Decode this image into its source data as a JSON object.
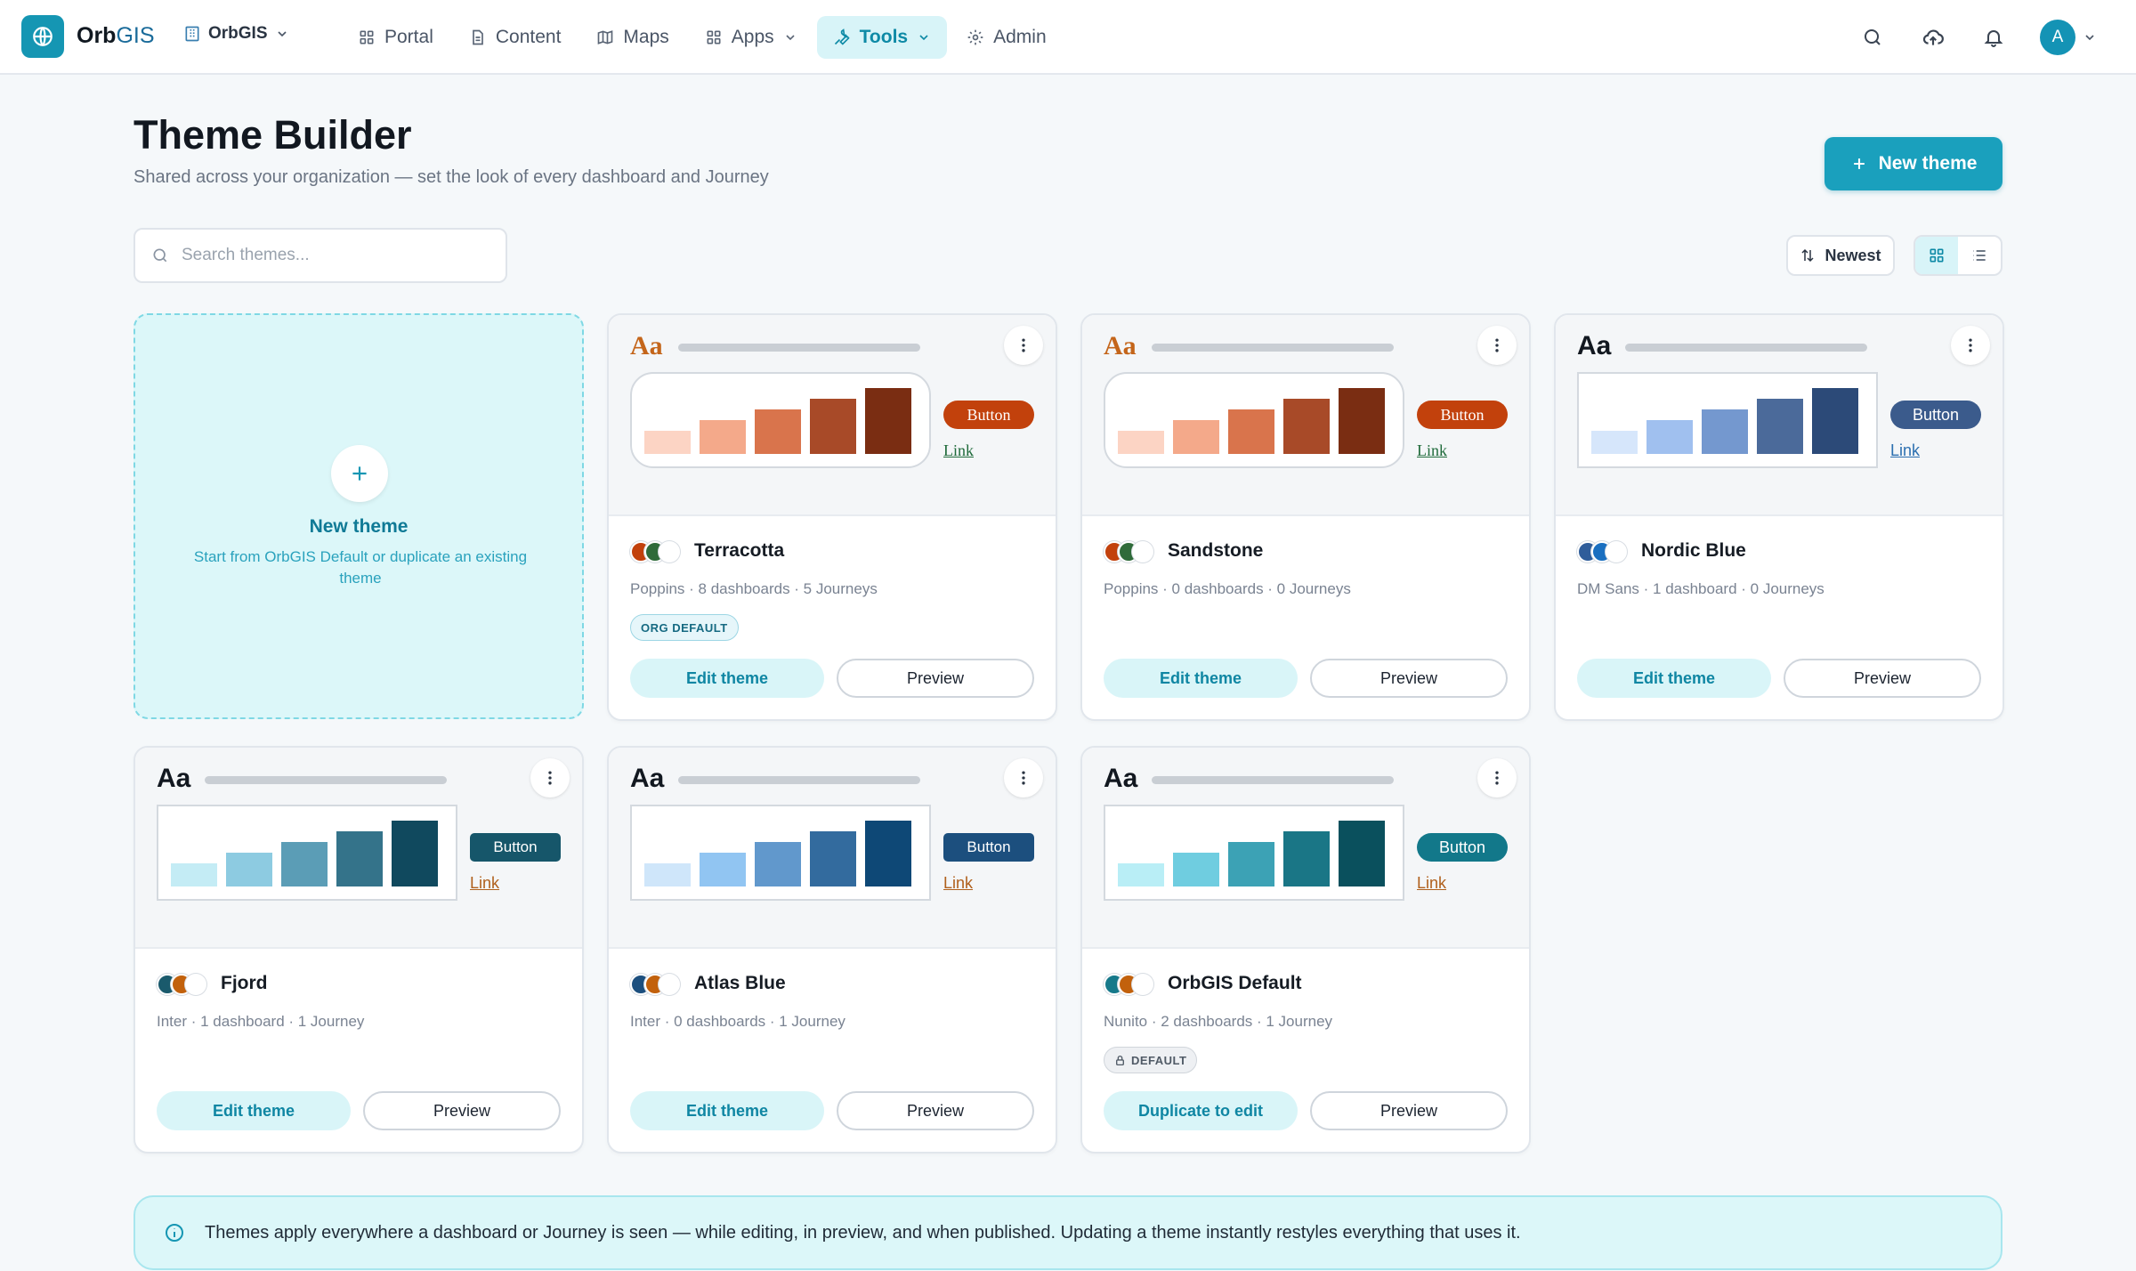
{
  "app": {
    "brand_main": "Orb",
    "brand_accent": "GIS",
    "org_name": "OrbGIS",
    "avatar_initial": "A"
  },
  "nav": [
    {
      "label": "Portal",
      "icon": "grid-icon"
    },
    {
      "label": "Content",
      "icon": "document-icon"
    },
    {
      "label": "Maps",
      "icon": "map-icon"
    },
    {
      "label": "Apps",
      "icon": "apps-icon"
    },
    {
      "label": "Tools",
      "icon": "wrench-icon",
      "active": true
    },
    {
      "label": "Admin",
      "icon": "gear-icon"
    }
  ],
  "header": {
    "title": "Theme Builder",
    "subtitle": "Shared across your organization — set the look of every dashboard and Journey",
    "new_button": "New theme"
  },
  "toolbar": {
    "search_placeholder": "Search themes...",
    "sort_label": "Newest"
  },
  "new_card": {
    "title": "New theme",
    "description": "Start from OrbGIS Default or duplicate an existing theme"
  },
  "themes": [
    {
      "name": "Terracotta",
      "meta": "Poppins · 8 dashboards · 5 Journeys",
      "tag": "ORG DEFAULT",
      "aa": "Aa",
      "button_label": "Button",
      "link_label": "Link",
      "primary_action": "Edit theme",
      "secondary_action": "Preview",
      "aa_color": "#c4651a",
      "button_color": "#c2410c",
      "link_color": "#1e6a3a",
      "swatches": [
        "#c2410c",
        "#2f6b3a",
        "#ffffff"
      ],
      "bars": [
        "#fcd4c4",
        "#f4a98a",
        "#d9744c",
        "#a84a28",
        "#7a2d12"
      ]
    },
    {
      "name": "Sandstone",
      "meta": "Poppins · 0 dashboards · 0 Journeys",
      "aa": "Aa",
      "button_label": "Button",
      "link_label": "Link",
      "primary_action": "Edit theme",
      "secondary_action": "Preview",
      "aa_color": "#c4651a",
      "button_color": "#c2410c",
      "link_color": "#1e6a3a",
      "swatches": [
        "#c2410c",
        "#2f6b3a",
        "#ffffff"
      ],
      "bars": [
        "#fcd4c4",
        "#f4a98a",
        "#d9744c",
        "#a84a28",
        "#7a2d12"
      ]
    },
    {
      "name": "Nordic Blue",
      "meta": "DM Sans · 1 dashboard · 0 Journeys",
      "aa": "Aa",
      "button_label": "Button",
      "link_label": "Link",
      "primary_action": "Edit theme",
      "secondary_action": "Preview",
      "aa_color": "#121820",
      "button_color": "#3b5b8c",
      "link_color": "#2c6fb0",
      "swatches": [
        "#2f5d9a",
        "#1a6fc0",
        "#ffffff"
      ],
      "bars": [
        "#d6e6fb",
        "#a0c0ef",
        "#7498cf",
        "#4b6a9a",
        "#2c4a78"
      ]
    },
    {
      "name": "Fjord",
      "meta": "Inter · 1 dashboard · 1 Journey",
      "aa": "Aa",
      "button_label": "Button",
      "link_label": "Link",
      "primary_action": "Edit theme",
      "secondary_action": "Preview",
      "aa_color": "#121820",
      "button_color": "#16566a",
      "link_color": "#b0601c",
      "swatches": [
        "#1a5a6c",
        "#c2610c",
        "#ffffff"
      ],
      "bars": [
        "#c4ecf5",
        "#8dcbe1",
        "#5b9db6",
        "#34738a",
        "#10495e"
      ]
    },
    {
      "name": "Atlas Blue",
      "meta": "Inter · 0 dashboards · 1 Journey",
      "aa": "Aa",
      "button_label": "Button",
      "link_label": "Link",
      "primary_action": "Edit theme",
      "secondary_action": "Preview",
      "aa_color": "#121820",
      "button_color": "#1c4f7e",
      "link_color": "#b0601c",
      "swatches": [
        "#1c4f7e",
        "#c2610c",
        "#ffffff"
      ],
      "bars": [
        "#cfe6fa",
        "#91c5f2",
        "#6198cc",
        "#336b9e",
        "#0e4876"
      ]
    },
    {
      "name": "OrbGIS Default",
      "meta": "Nunito · 2 dashboards · 1 Journey",
      "tag": "DEFAULT",
      "aa": "Aa",
      "button_label": "Button",
      "link_label": "Link",
      "primary_action": "Duplicate to edit",
      "secondary_action": "Preview",
      "aa_color": "#121820",
      "button_color": "#12788a",
      "link_color": "#b0601c",
      "swatches": [
        "#16798a",
        "#c2610c",
        "#ffffff"
      ],
      "bars": [
        "#b9eef6",
        "#6fcde0",
        "#3ca2b5",
        "#1a7686",
        "#0a505d"
      ]
    }
  ],
  "banner": {
    "text": "Themes apply everywhere a dashboard or Journey is seen — while editing, in preview, and when published. Updating a theme instantly restyles everything that uses it."
  }
}
